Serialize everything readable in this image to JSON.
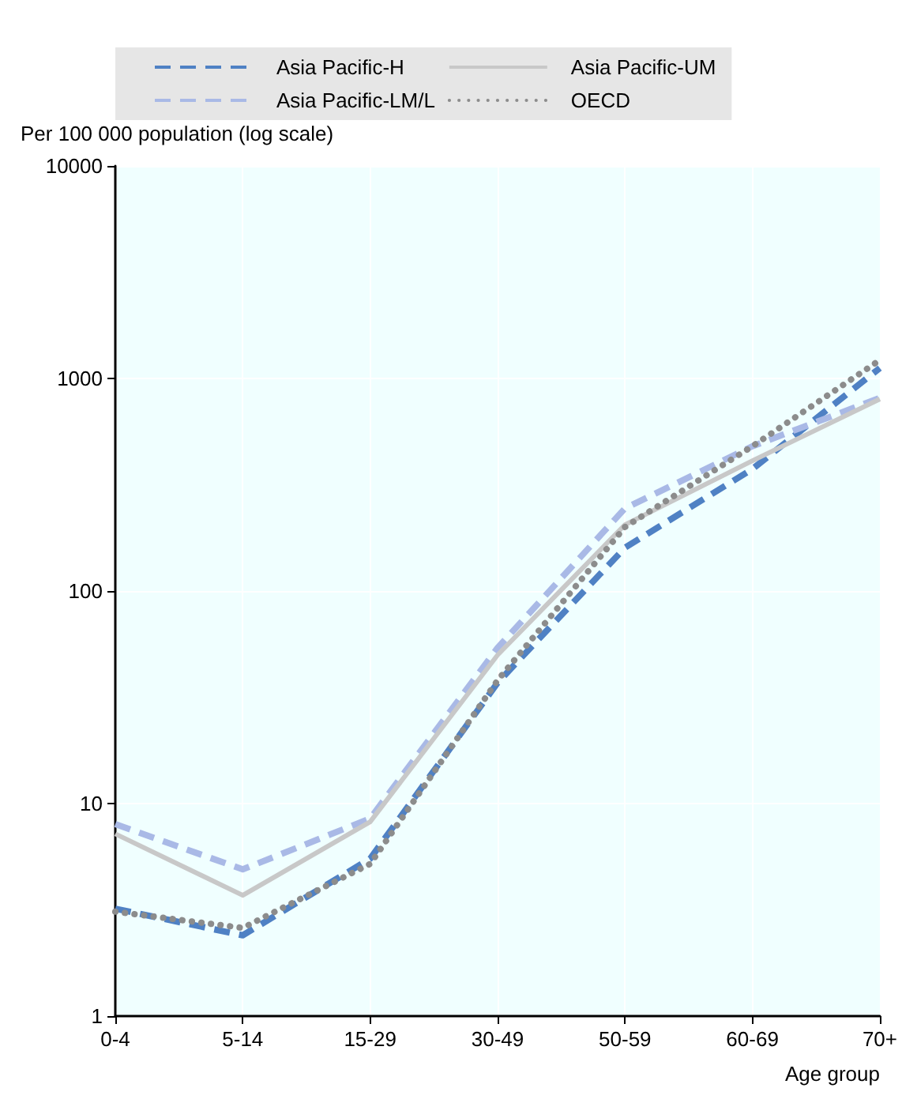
{
  "chart_data": {
    "type": "line",
    "ylabel": "Per 100 000 population (log scale)",
    "xlabel": "Age group",
    "categories": [
      "0-4",
      "5-14",
      "15-29",
      "30-49",
      "50-59",
      "60-69",
      "70+"
    ],
    "series": [
      {
        "name": "Asia Pacific-H",
        "color": "#4f81c4",
        "line_style": "dashed",
        "values": [
          3.2,
          2.4,
          5.5,
          37,
          160,
          375,
          1120
        ]
      },
      {
        "name": "Asia Pacific-LM/L",
        "color": "#a9b9e6",
        "line_style": "dashed",
        "values": [
          8.0,
          4.9,
          8.5,
          54,
          245,
          480,
          810
        ]
      },
      {
        "name": "Asia Pacific-UM",
        "color": "#c8c8c8",
        "line_style": "solid",
        "values": [
          7.2,
          3.7,
          8.2,
          50,
          205,
          410,
          800
        ]
      },
      {
        "name": "OECD",
        "color": "#8c8c8c",
        "line_style": "dotted",
        "values": [
          3.1,
          2.6,
          5.2,
          38,
          200,
          480,
          1220
        ]
      }
    ],
    "log": "y",
    "ylim": [
      1,
      10000
    ],
    "yticks": [
      1,
      10,
      100,
      1000,
      10000
    ],
    "grid": true,
    "legend": "top",
    "marker": "none"
  }
}
